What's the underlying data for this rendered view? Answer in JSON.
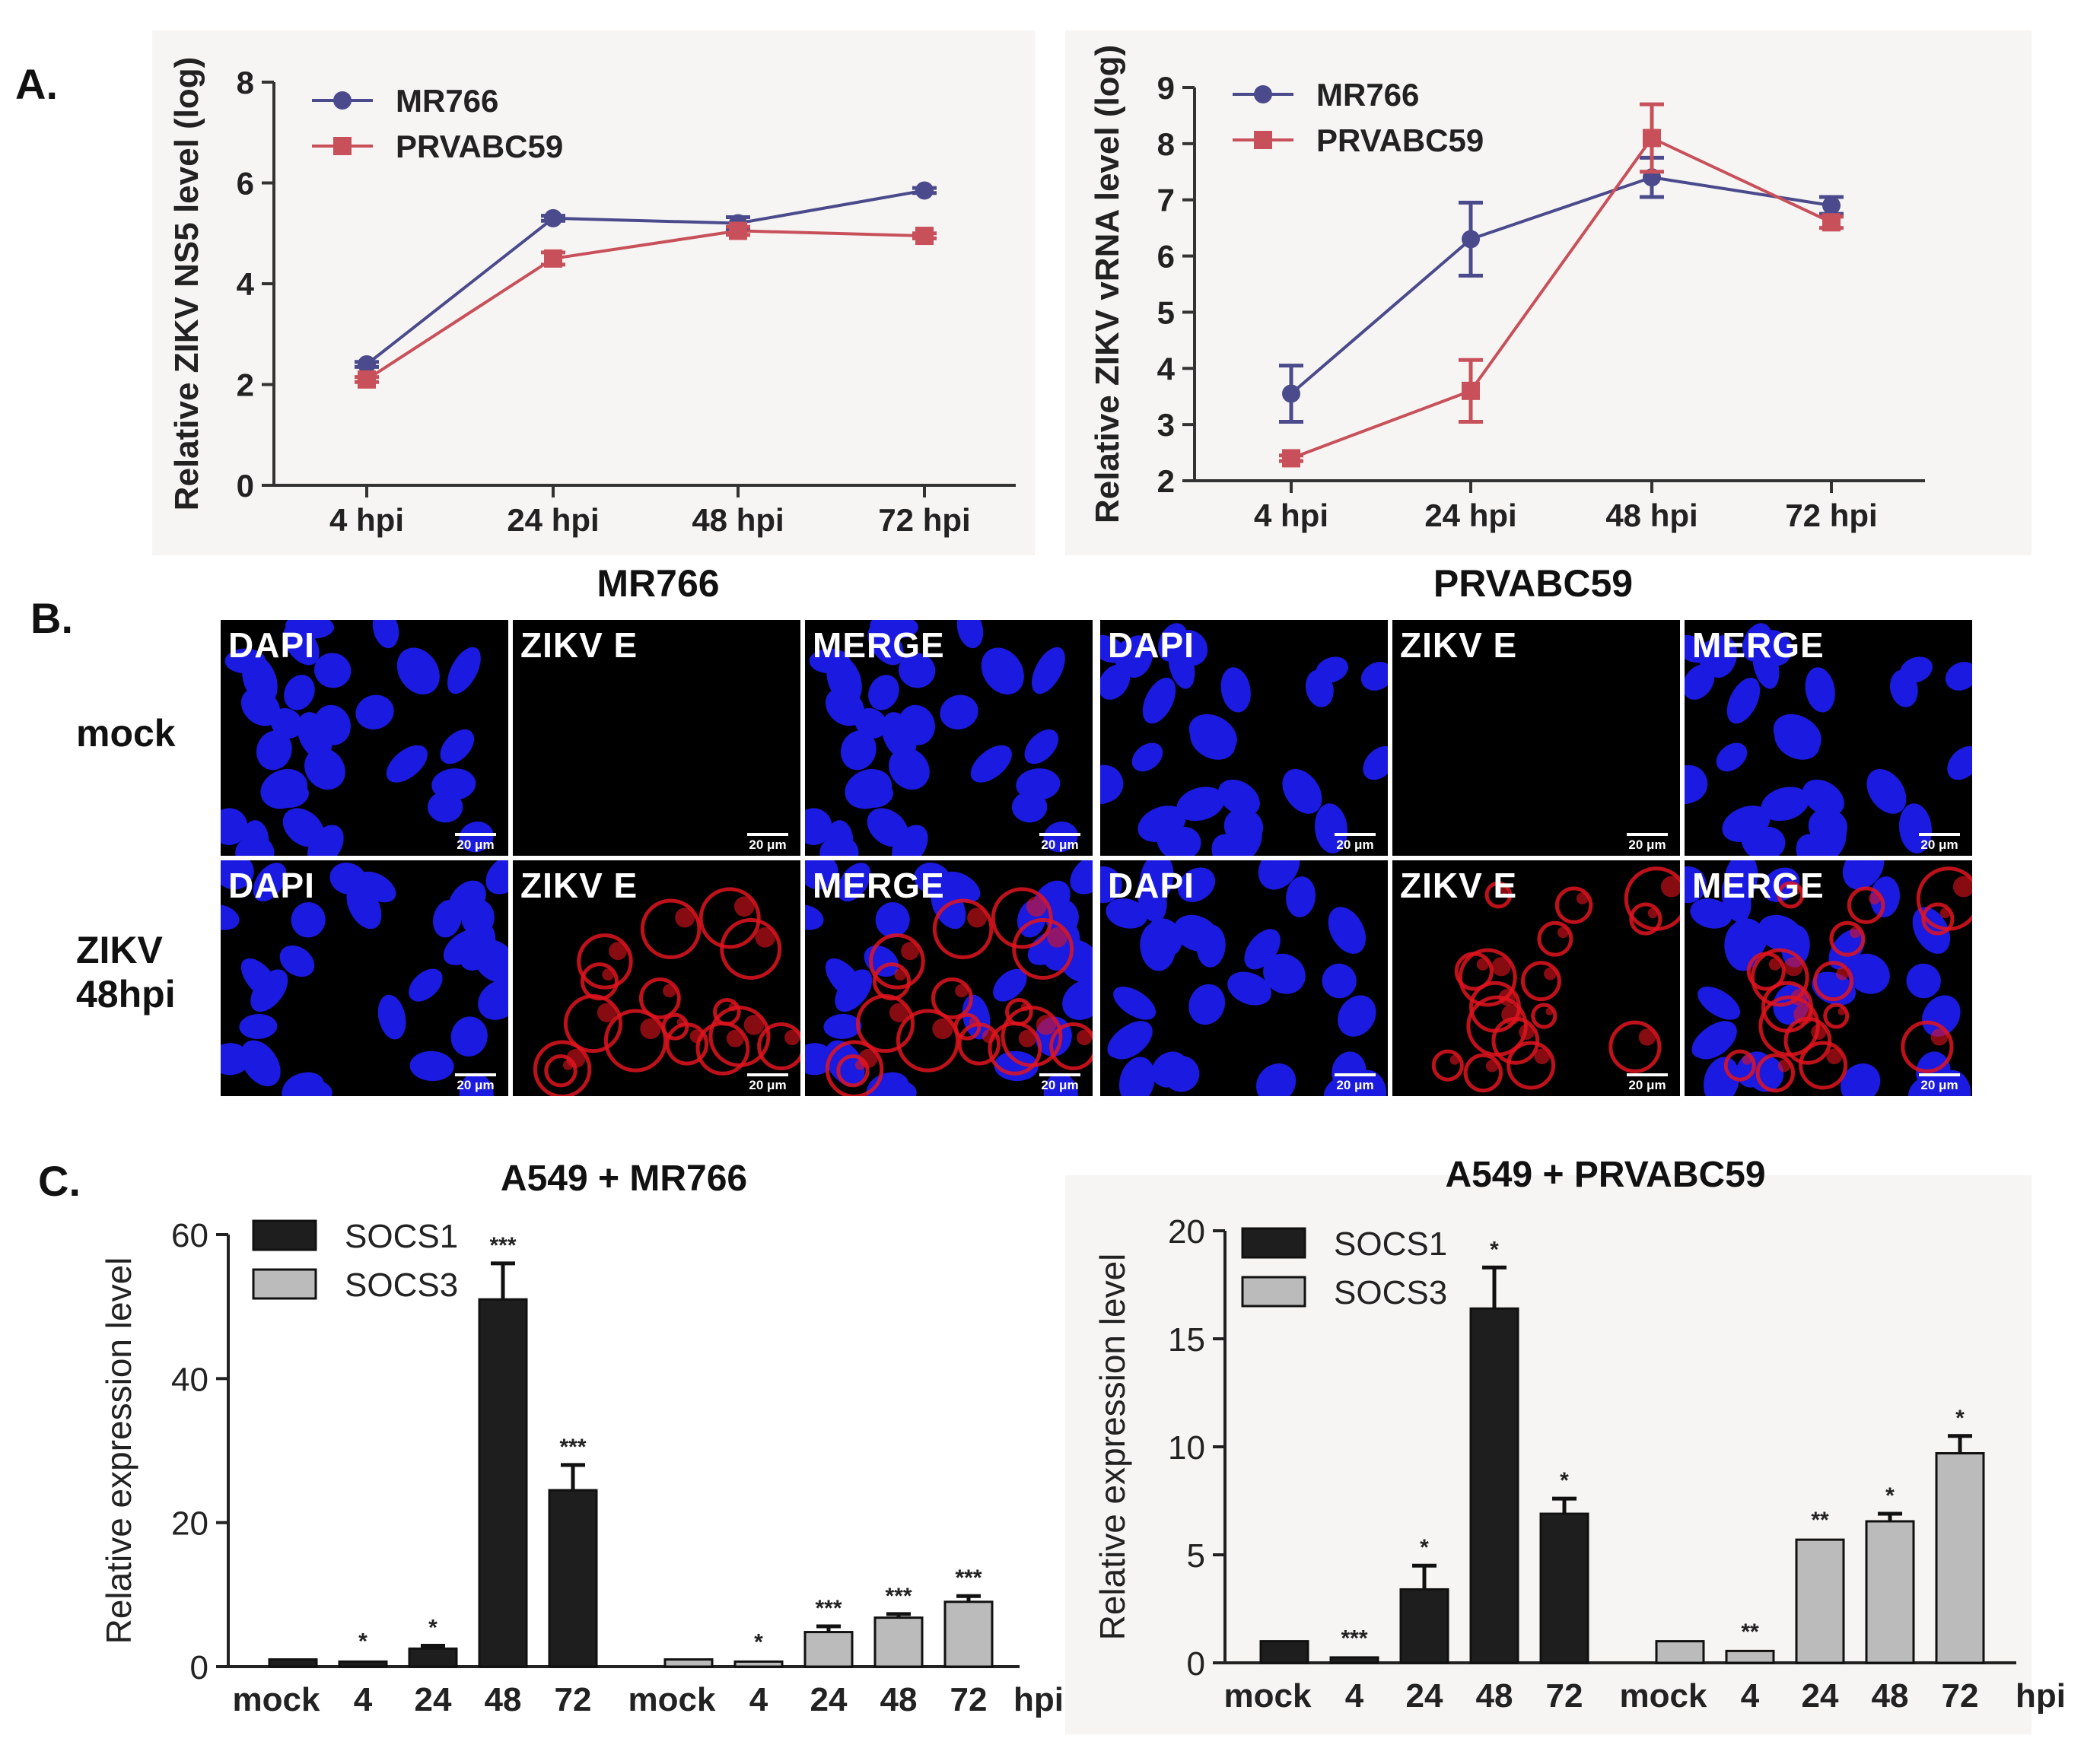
{
  "panel_letters": {
    "a": "A.",
    "b": "B.",
    "c": "C."
  },
  "chart_data": [
    {
      "id": "A1",
      "type": "line",
      "title": "",
      "ylabel": "Relative ZIKV NS5 level (log)",
      "xlabel": "",
      "categories": [
        "4 hpi",
        "24 hpi",
        "48 hpi",
        "72 hpi"
      ],
      "ylim": [
        0,
        8
      ],
      "yticks": [
        0,
        2,
        4,
        6,
        8
      ],
      "series": [
        {
          "name": "MR766",
          "color": "#4a4a8c",
          "marker": "circle",
          "values": [
            2.4,
            5.3,
            5.2,
            5.85
          ],
          "errors": [
            0.05,
            0.05,
            0.12,
            0.05
          ]
        },
        {
          "name": "PRVABC59",
          "color": "#c8505a",
          "marker": "square",
          "values": [
            2.1,
            4.5,
            5.05,
            4.95
          ],
          "errors": [
            0.05,
            0.12,
            0.08,
            0.05
          ]
        }
      ]
    },
    {
      "id": "A2",
      "type": "line",
      "title": "",
      "ylabel": "Relative ZIKV vRNA level (log)",
      "xlabel": "",
      "categories": [
        "4 hpi",
        "24 hpi",
        "48 hpi",
        "72 hpi"
      ],
      "ylim": [
        2,
        9
      ],
      "yticks": [
        2,
        3,
        4,
        5,
        6,
        7,
        8,
        9
      ],
      "series": [
        {
          "name": "MR766",
          "color": "#4a4a8c",
          "marker": "circle",
          "values": [
            3.55,
            6.3,
            7.4,
            6.9
          ],
          "errors": [
            0.5,
            0.65,
            0.35,
            0.15
          ]
        },
        {
          "name": "PRVABC59",
          "color": "#c8505a",
          "marker": "square",
          "values": [
            2.4,
            3.6,
            8.1,
            6.6
          ],
          "errors": [
            0.05,
            0.55,
            0.6,
            0.1
          ]
        }
      ]
    },
    {
      "id": "C1",
      "type": "bar",
      "title": "A549 + MR766",
      "ylabel": "Relative expression level",
      "xlabel": "hpi",
      "ylim": [
        0,
        60
      ],
      "yticks": [
        0,
        20,
        40,
        60
      ],
      "group_labels": [
        "mock",
        "4",
        "24",
        "48",
        "72"
      ],
      "series": [
        {
          "name": "SOCS1",
          "color": "#1e1e1e",
          "values": [
            1.0,
            0.7,
            2.5,
            51.0,
            24.5
          ],
          "errors": [
            0.1,
            0.3,
            0.4,
            5.0,
            3.5
          ],
          "signif": [
            "",
            "*",
            "*",
            "***",
            "***"
          ]
        },
        {
          "name": "SOCS3",
          "color": "#bbbbbb",
          "values": [
            1.0,
            0.7,
            4.8,
            6.8,
            9.0
          ],
          "errors": [
            0.1,
            0.2,
            0.8,
            0.5,
            0.8
          ],
          "signif": [
            "",
            "*",
            "***",
            "***",
            "***"
          ]
        }
      ]
    },
    {
      "id": "C2",
      "type": "bar",
      "title": "A549 + PRVABC59",
      "ylabel": "Relative expression level",
      "xlabel": "hpi",
      "ylim": [
        0,
        20
      ],
      "yticks": [
        0,
        5,
        10,
        15,
        20
      ],
      "group_labels": [
        "mock",
        "4",
        "24",
        "48",
        "72"
      ],
      "series": [
        {
          "name": "SOCS1",
          "color": "#1e1e1e",
          "values": [
            1.0,
            0.25,
            3.4,
            16.4,
            6.9
          ],
          "errors": [
            0.05,
            0.05,
            1.1,
            1.9,
            0.7
          ],
          "signif": [
            "",
            "***",
            "*",
            "*",
            "*"
          ]
        },
        {
          "name": "SOCS3",
          "color": "#bbbbbb",
          "values": [
            1.0,
            0.55,
            5.7,
            6.55,
            9.7
          ],
          "errors": [
            0.05,
            0.05,
            0.08,
            0.35,
            0.8
          ],
          "signif": [
            "",
            "**",
            "**",
            "*",
            "*"
          ]
        }
      ]
    }
  ],
  "micrographs": {
    "strains": [
      "MR766",
      "PRVABC59"
    ],
    "rows": [
      "mock",
      "ZIKV\n48hpi"
    ],
    "channels": [
      "DAPI",
      "ZIKV E",
      "MERGE"
    ],
    "scale_bar": "20 μm",
    "nucleus_color": "#1a1ae0",
    "virus_color": "#e0141e"
  }
}
